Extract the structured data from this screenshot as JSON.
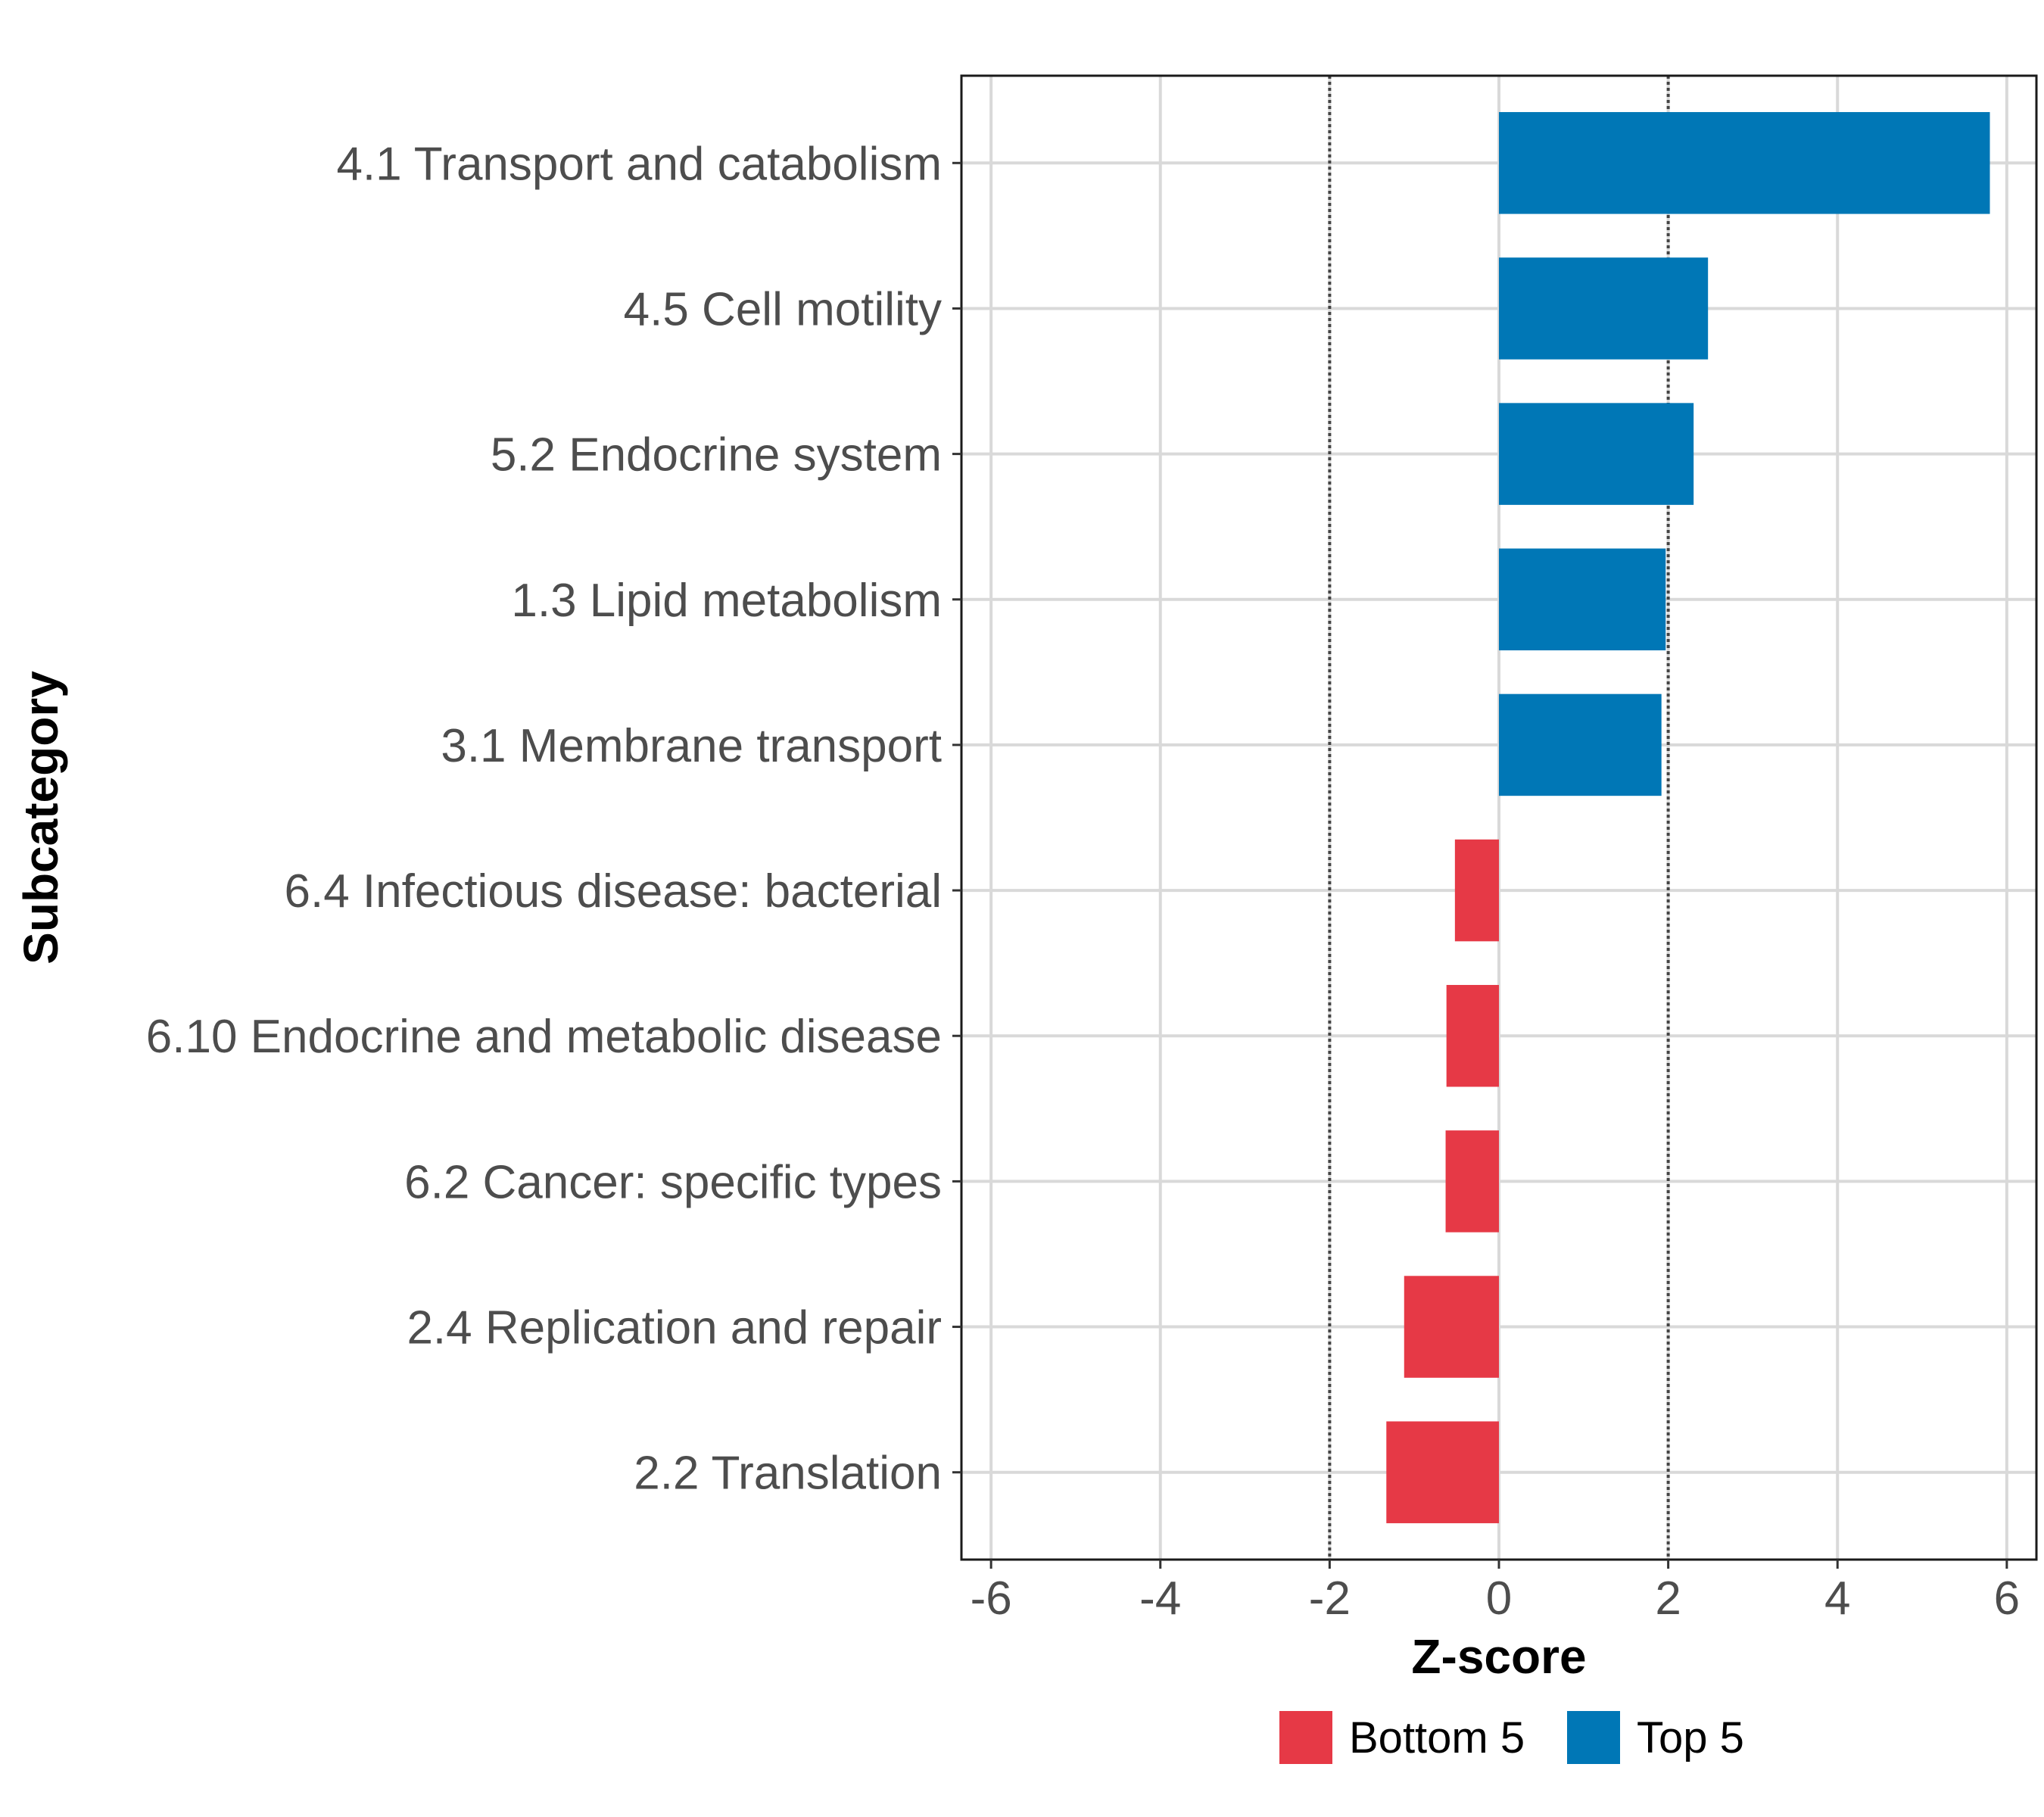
{
  "chart_data": {
    "type": "bar",
    "orientation": "horizontal",
    "xlabel": "Z-score",
    "ylabel": "Subcategory",
    "xlim": [
      -6.35,
      6.35
    ],
    "x_ticks": [
      -6,
      -4,
      -2,
      0,
      2,
      4,
      6
    ],
    "x_tick_labels": [
      "-6",
      "-4",
      "-2",
      "0",
      "2",
      "4",
      "6"
    ],
    "reference_lines": [
      -2,
      2
    ],
    "grid": true,
    "categories": [
      "4.1 Transport and catabolism",
      "4.5 Cell motility",
      "5.2 Endocrine system",
      "1.3 Lipid metabolism",
      "3.1 Membrane transport",
      "6.4 Infectious disease: bacterial",
      "6.10 Endocrine and metabolic disease",
      "6.2 Cancer: specific types",
      "2.4 Replication and repair",
      "2.2 Translation"
    ],
    "values": [
      5.8,
      2.47,
      2.3,
      1.97,
      1.92,
      -0.52,
      -0.62,
      -0.63,
      -1.12,
      -1.33
    ],
    "groups": [
      "Top 5",
      "Top 5",
      "Top 5",
      "Top 5",
      "Top 5",
      "Bottom 5",
      "Bottom 5",
      "Bottom 5",
      "Bottom 5",
      "Bottom 5"
    ],
    "legend": [
      {
        "label": "Bottom 5",
        "color": "#E63946"
      },
      {
        "label": "Top 5",
        "color": "#0077B6"
      }
    ],
    "legend_position": "bottom"
  }
}
